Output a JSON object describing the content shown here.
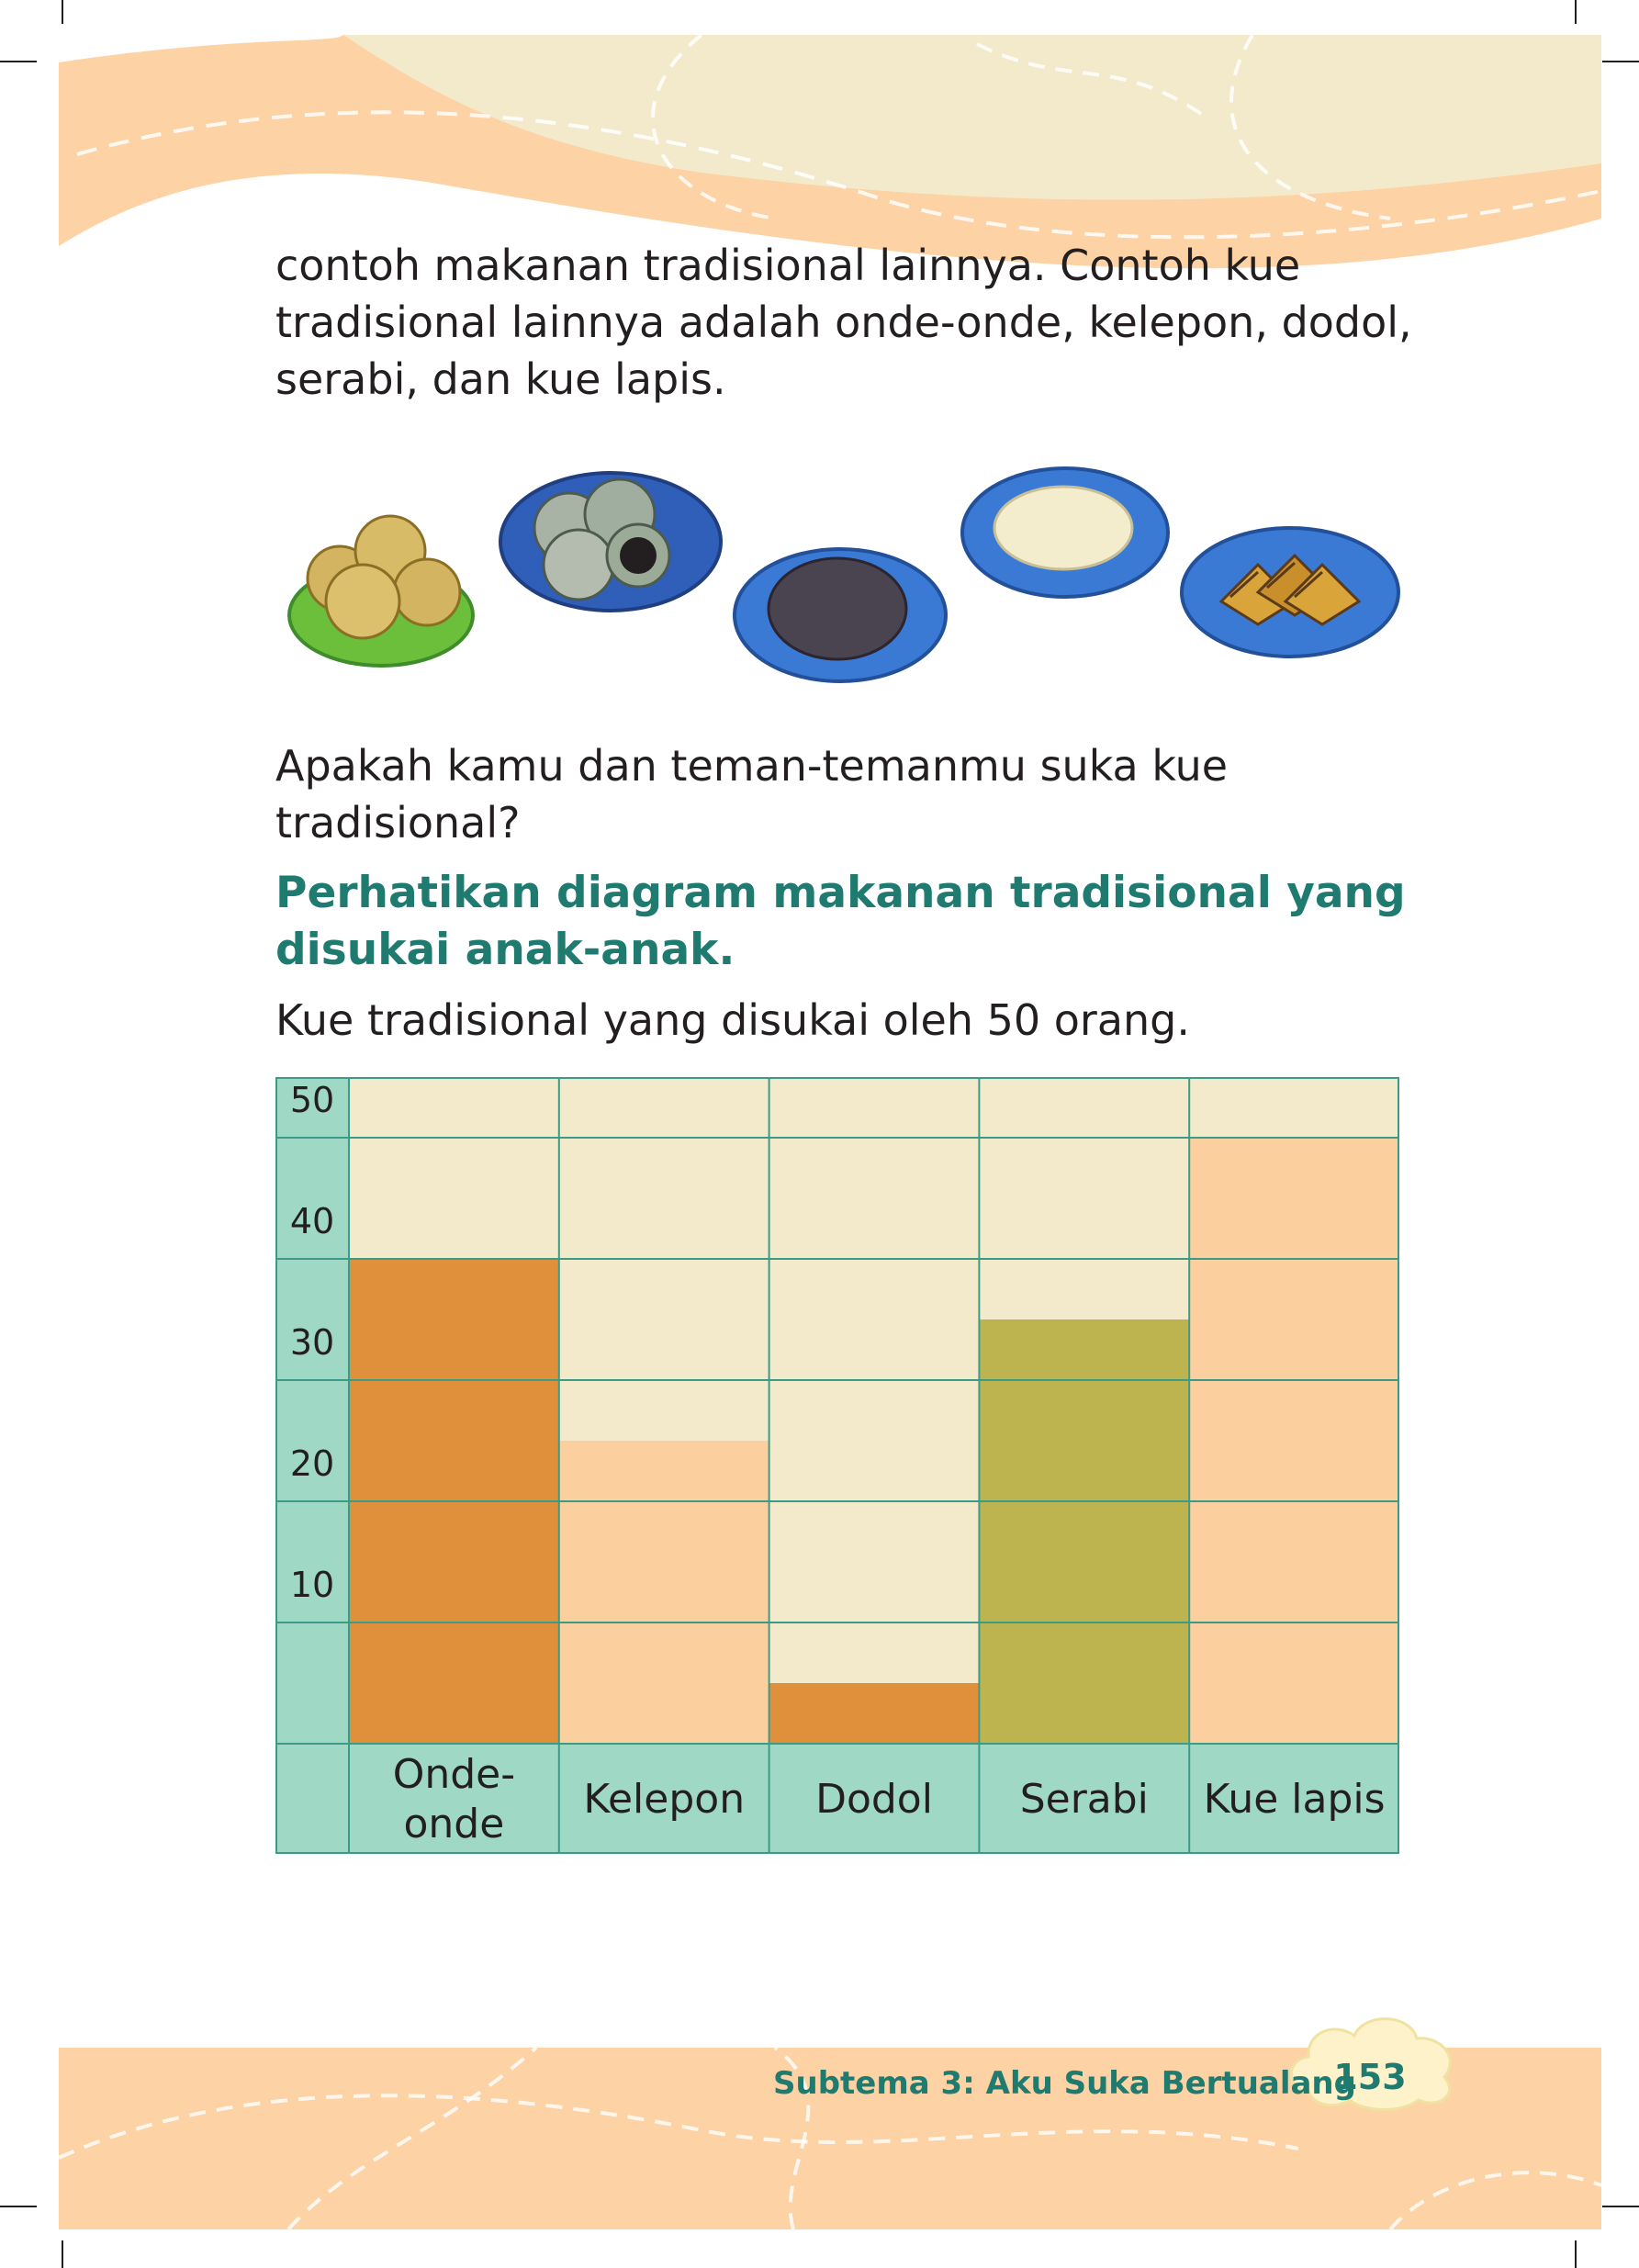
{
  "text": {
    "paragraph1": "contoh makanan tradisional lainnya.  Contoh kue tradisional lainnya adalah onde-onde, kelepon, dodol, serabi, dan kue lapis.",
    "question": "Apakah kamu dan teman-temanmu suka kue tradisional?",
    "instruction": "Perhatikan diagram makanan tradisional yang disukai anak-anak.",
    "chart_intro": "Kue tradisional yang disukai oleh 50 orang."
  },
  "foods": [
    {
      "icon": "onde-onde-plate-icon"
    },
    {
      "icon": "kelepon-plate-icon"
    },
    {
      "icon": "dodol-plate-icon"
    },
    {
      "icon": "serabi-plate-icon"
    },
    {
      "icon": "kue-lapis-plate-icon"
    }
  ],
  "chart_data": {
    "type": "bar",
    "categories": [
      "Onde-onde",
      "Kelepon",
      "Dodol",
      "Serabi",
      "Kue lapis"
    ],
    "category_lines": [
      [
        "Onde-",
        "onde"
      ],
      [
        "Kelepon"
      ],
      [
        "Dodol"
      ],
      [
        "Serabi"
      ],
      [
        "Kue lapis"
      ]
    ],
    "values": [
      40,
      25,
      5,
      35,
      50
    ],
    "bar_colors": [
      "#e0903a",
      "#fccf9f",
      "#e0903a",
      "#bdb44f",
      "#fccf9f"
    ],
    "yticks": [
      10,
      20,
      30,
      40,
      50
    ],
    "ylim": [
      0,
      55
    ],
    "grid": true,
    "colors": {
      "background": "#f3eacc",
      "axis": "#9fd8c4",
      "line": "#3c9b85"
    }
  },
  "footer": {
    "subtheme": "Subtema 3: Aku Suka Bertualang",
    "page_number": "153"
  }
}
